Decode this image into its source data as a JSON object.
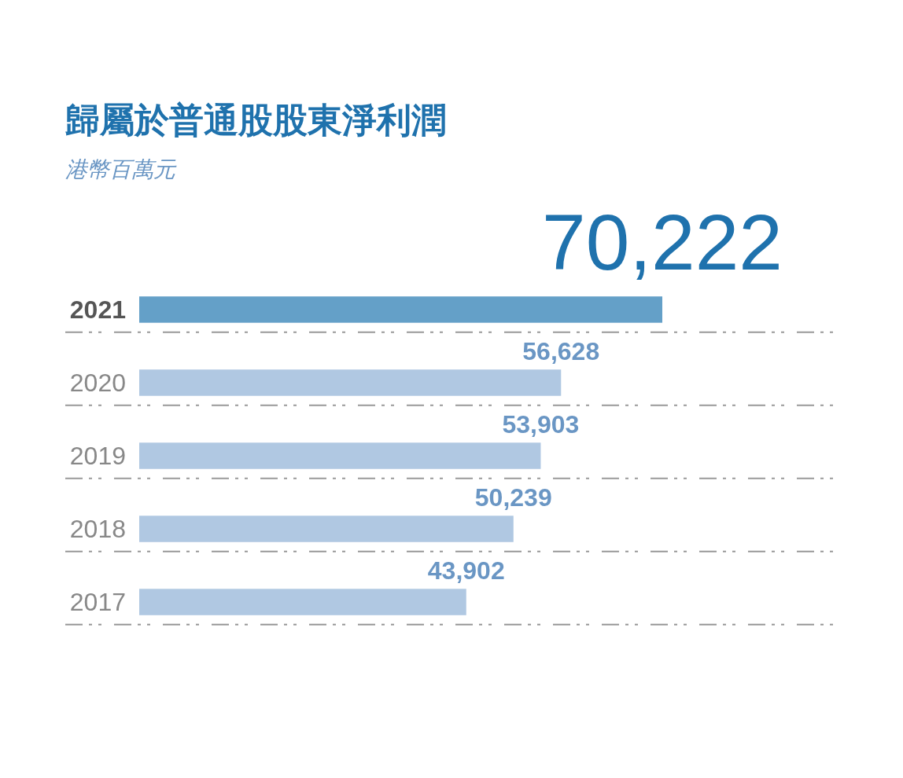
{
  "chart_data": {
    "type": "bar",
    "orientation": "horizontal",
    "title": "歸屬於普通股股東淨利潤",
    "subtitle": "港幣百萬元",
    "categories": [
      "2021",
      "2020",
      "2019",
      "2018",
      "2017"
    ],
    "values": [
      70222,
      56628,
      53903,
      50239,
      43902
    ],
    "colors": [
      "#64a0c8",
      "#b0c8e2",
      "#b0c8e2",
      "#b0c8e2",
      "#b0c8e2"
    ],
    "value_labels": [
      "70,222",
      "56,628",
      "53,903",
      "50,239",
      "43,902"
    ]
  }
}
